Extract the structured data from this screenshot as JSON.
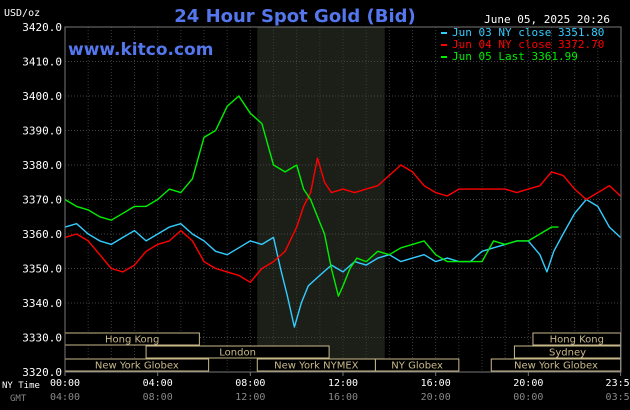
{
  "chart_data": {
    "type": "line",
    "title": "24 Hour Spot Gold (Bid)",
    "website": "www.kitco.com",
    "timestamp": "June 05, 2025 20:26",
    "ylabel": "USD/oz",
    "ylim": [
      3320,
      3420
    ],
    "y_ticks": [
      "3320.0",
      "3330.0",
      "3340.0",
      "3350.0",
      "3360.0",
      "3370.0",
      "3380.0",
      "3390.0",
      "3400.0",
      "3410.0",
      "3420.0"
    ],
    "x_range": [
      0,
      24
    ],
    "grid": true,
    "legend_position": "top-right",
    "x_axis_label_ny": "NY Time",
    "x_axis_label_gmt": "GMT",
    "x_ticks_ny": [
      "00:00",
      "04:00",
      "08:00",
      "12:00",
      "16:00",
      "20:00",
      "23:59"
    ],
    "x_ticks_gmt": [
      "04:00",
      "08:00",
      "12:00",
      "16:00",
      "20:00",
      "00:00",
      "03:59"
    ],
    "x_ticks_hours": [
      0,
      4,
      8,
      12,
      16,
      20,
      23.983
    ],
    "shaded_session_hours": [
      8.3,
      13.8
    ],
    "sessions": [
      {
        "label": "Hong Kong",
        "start": 0,
        "end": 5.8,
        "row": 0
      },
      {
        "label": "London",
        "start": 3.5,
        "end": 11.4,
        "row": 1
      },
      {
        "label": "New York Globex",
        "start": 0,
        "end": 6.2,
        "row": 2
      },
      {
        "label": "New York NYMEX",
        "start": 8.3,
        "end": 13.4,
        "row": 2
      },
      {
        "label": "NY Globex",
        "start": 13.4,
        "end": 17.0,
        "row": 2
      },
      {
        "label": "Hong Kong",
        "start": 20.2,
        "end": 23.983,
        "row": 0
      },
      {
        "label": "Sydney",
        "start": 19.4,
        "end": 23.983,
        "row": 1
      },
      {
        "label": "New York Globex",
        "start": 18.4,
        "end": 23.983,
        "row": 2
      }
    ],
    "series": [
      {
        "name": "Jun 03 NY close 3351.80",
        "color": "#33ccff",
        "x": [
          0,
          0.5,
          1,
          1.5,
          2,
          2.5,
          3,
          3.5,
          4,
          4.5,
          5,
          5.5,
          6,
          6.5,
          7,
          7.5,
          8,
          8.5,
          9,
          9.3,
          9.6,
          9.9,
          10.2,
          10.5,
          11,
          11.5,
          12,
          12.5,
          13,
          13.5,
          14,
          14.5,
          15,
          15.5,
          16,
          16.5,
          17,
          17.5,
          18,
          18.5,
          19,
          19.5,
          20,
          20.5,
          20.8,
          21.1,
          21.5,
          22,
          22.5,
          23,
          23.5,
          23.98
        ],
        "values": [
          3362,
          3363,
          3360,
          3358,
          3357,
          3359,
          3361,
          3358,
          3360,
          3362,
          3363,
          3360,
          3358,
          3355,
          3354,
          3356,
          3358,
          3357,
          3359,
          3350,
          3342,
          3333,
          3340,
          3345,
          3348,
          3351,
          3349,
          3352,
          3351,
          3353,
          3354,
          3352,
          3353,
          3354,
          3352,
          3353,
          3352,
          3352,
          3355,
          3356,
          3357,
          3358,
          3358,
          3354,
          3349,
          3355,
          3360,
          3366,
          3370,
          3368,
          3362,
          3359
        ]
      },
      {
        "name": "Jun 04 NY close 3372.70",
        "color": "#ff0000",
        "x": [
          0,
          0.5,
          1,
          1.5,
          2,
          2.5,
          3,
          3.5,
          4,
          4.5,
          5,
          5.5,
          6,
          6.5,
          7,
          7.5,
          8,
          8.5,
          9,
          9.5,
          10,
          10.3,
          10.6,
          10.9,
          11.2,
          11.5,
          12,
          12.5,
          13,
          13.5,
          14,
          14.5,
          15,
          15.5,
          16,
          16.5,
          17,
          17.5,
          18,
          18.5,
          19,
          19.5,
          20,
          20.5,
          21,
          21.5,
          22,
          22.5,
          23,
          23.5,
          23.98
        ],
        "values": [
          3359,
          3360,
          3358,
          3354,
          3350,
          3349,
          3351,
          3355,
          3357,
          3358,
          3361,
          3358,
          3352,
          3350,
          3349,
          3348,
          3346,
          3350,
          3352,
          3355,
          3362,
          3368,
          3372,
          3382,
          3375,
          3372,
          3373,
          3372,
          3373,
          3374,
          3377,
          3380,
          3378,
          3374,
          3372,
          3371,
          3373,
          3373,
          3373,
          3373,
          3373,
          3372,
          3373,
          3374,
          3378,
          3377,
          3373,
          3370,
          3372,
          3374,
          3371
        ]
      },
      {
        "name": "Jun 05 Last 3361.99",
        "color": "#00ee00",
        "x": [
          0,
          0.5,
          1,
          1.5,
          2,
          2.5,
          3,
          3.5,
          4,
          4.5,
          5,
          5.5,
          6,
          6.5,
          7,
          7.5,
          8,
          8.5,
          9,
          9.5,
          10,
          10.3,
          10.6,
          10.9,
          11.2,
          11.5,
          11.8,
          12,
          12.3,
          12.6,
          13,
          13.5,
          14,
          14.5,
          15,
          15.5,
          16,
          16.5,
          17,
          17.5,
          18,
          18.5,
          19,
          19.5,
          20,
          20.5,
          21,
          21.3
        ],
        "values": [
          3370,
          3368,
          3367,
          3365,
          3364,
          3366,
          3368,
          3368,
          3370,
          3373,
          3372,
          3376,
          3388,
          3390,
          3397,
          3400,
          3395,
          3392,
          3380,
          3378,
          3380,
          3373,
          3370,
          3365,
          3360,
          3350,
          3342,
          3345,
          3350,
          3353,
          3352,
          3355,
          3354,
          3356,
          3357,
          3358,
          3354,
          3352,
          3352,
          3352,
          3352,
          3358,
          3357,
          3358,
          3358,
          3360,
          3362,
          3362
        ]
      }
    ]
  }
}
